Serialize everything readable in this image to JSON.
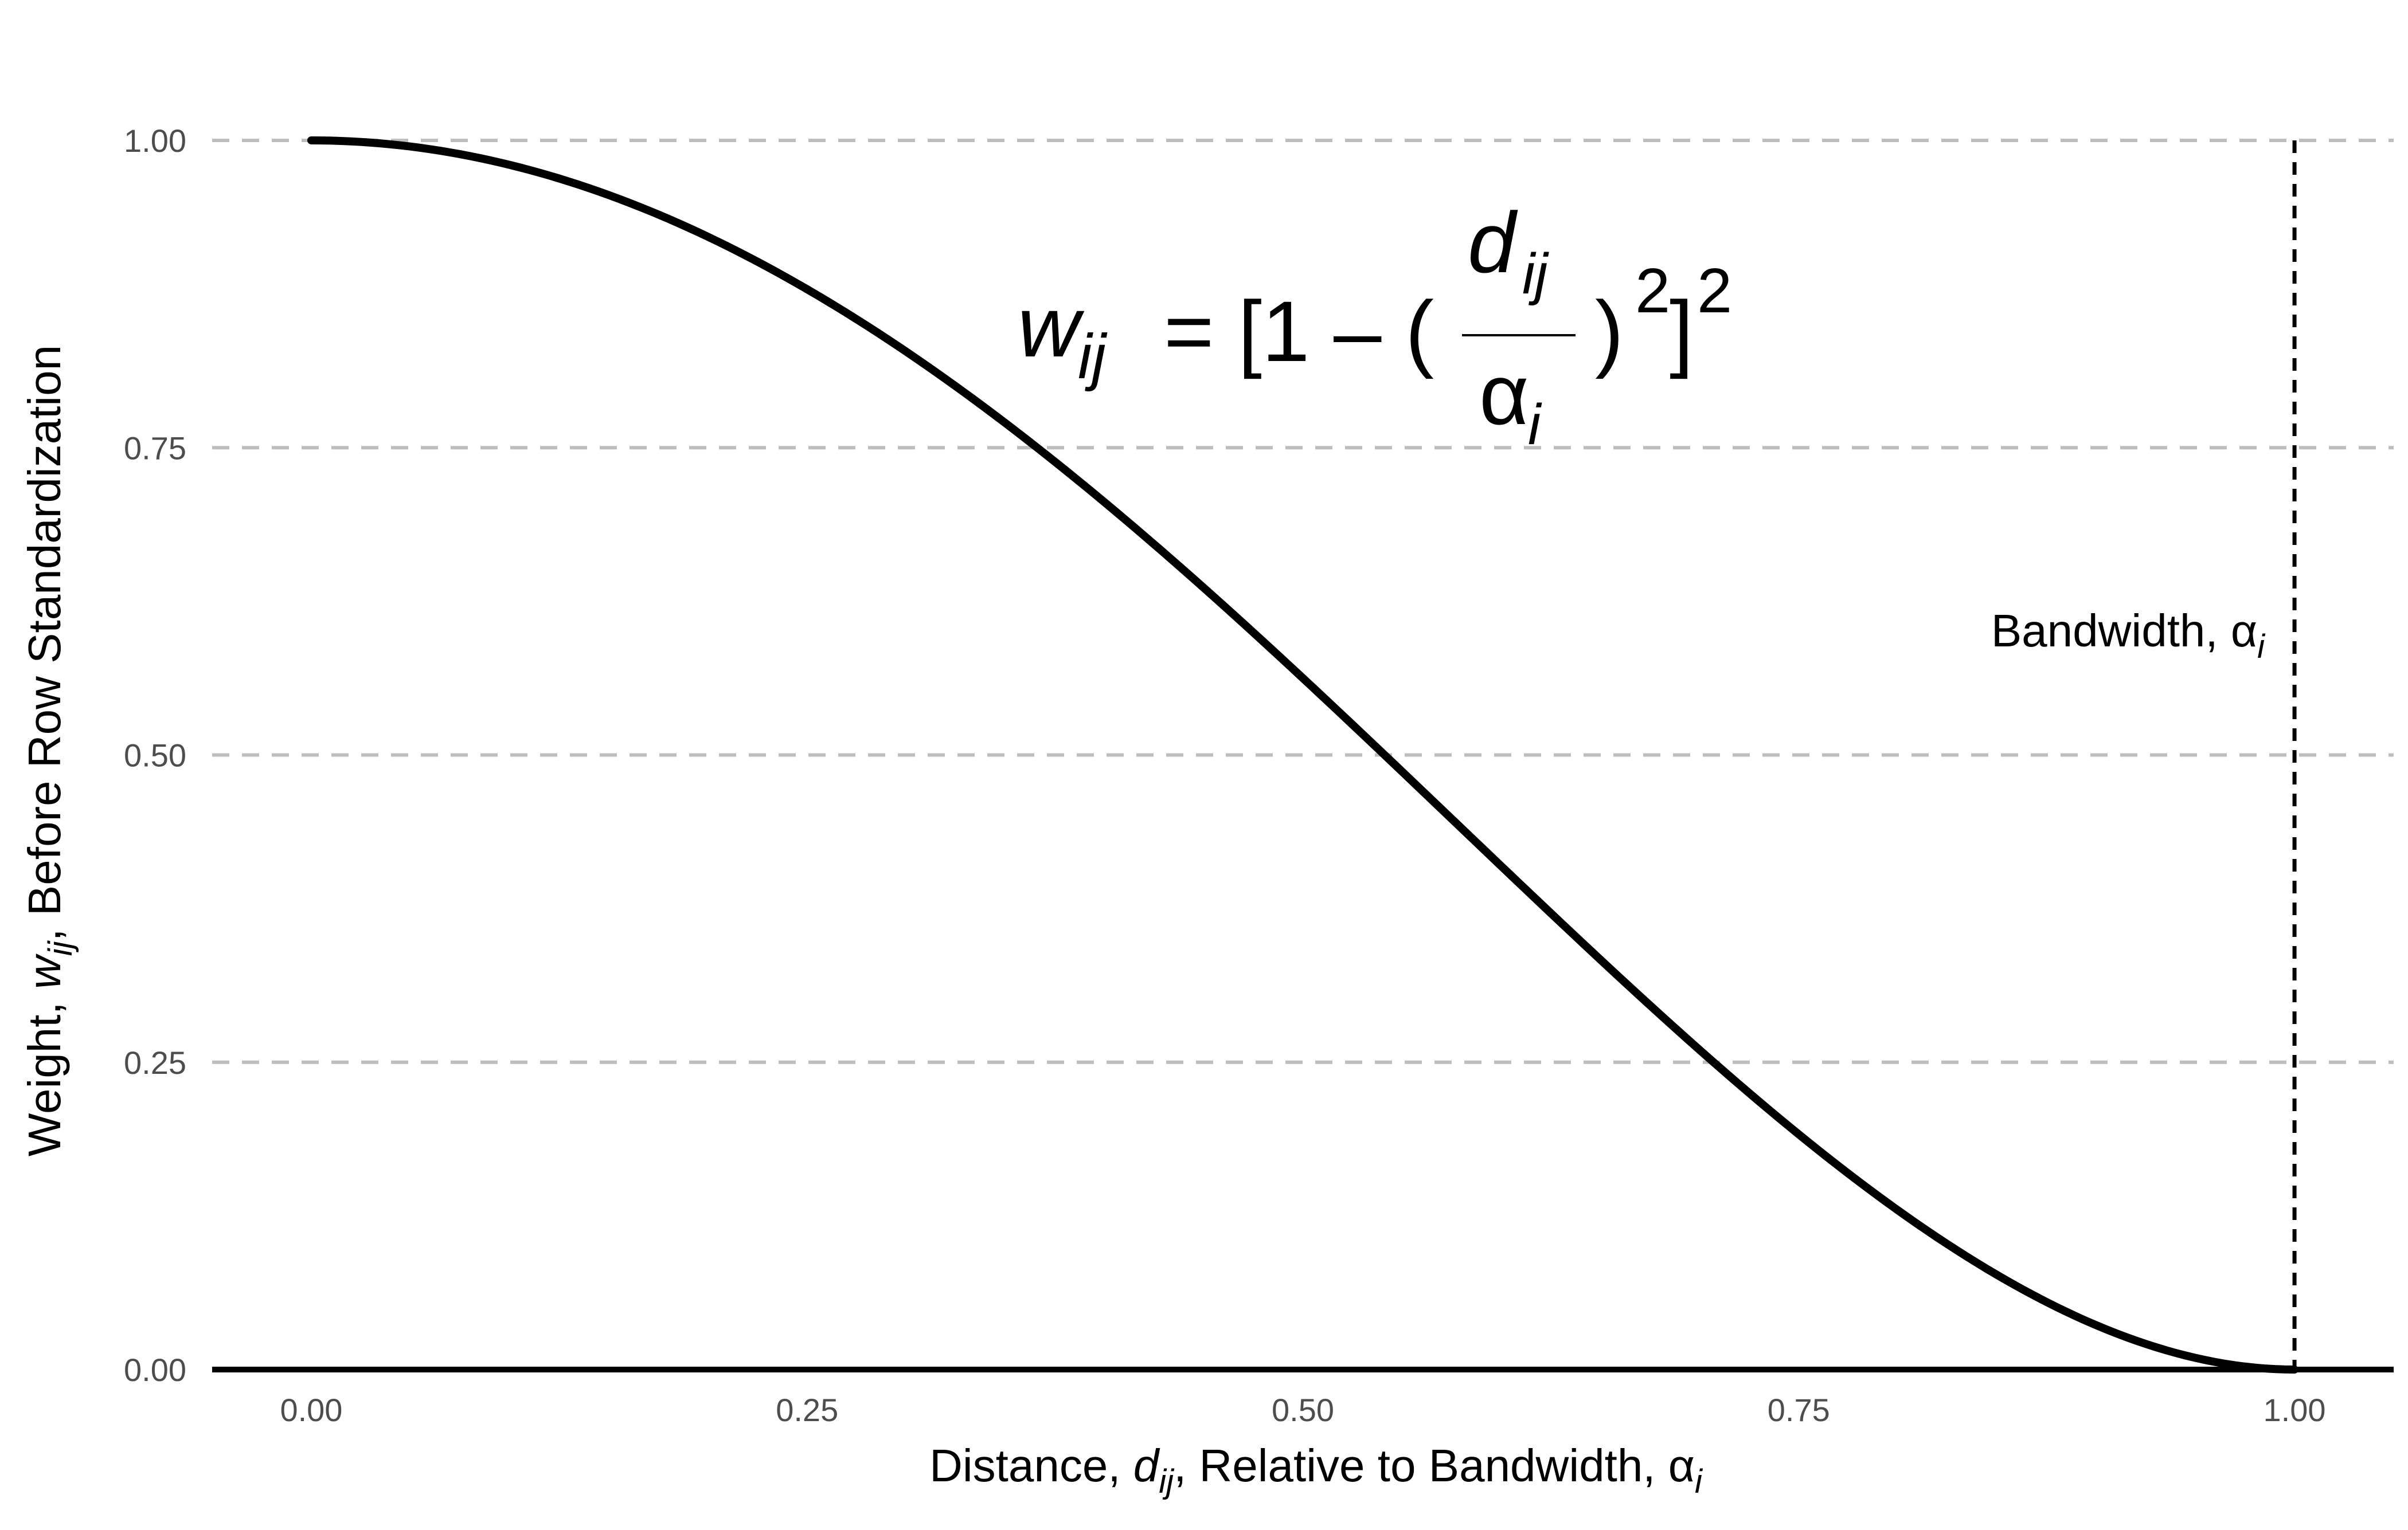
{
  "chart_data": {
    "type": "line",
    "title": "",
    "formula": {
      "lhs": "w",
      "lhs_sub": "ij",
      "rhs_prefix": "= [1 – (",
      "numerator": "d",
      "numerator_sub": "ij",
      "denominator": "α",
      "denominator_sub": "i",
      "inner_close": ")",
      "inner_exp": "2",
      "outer_close": "]",
      "outer_exp": "2"
    },
    "xlabel": {
      "prefix": "Distance, ",
      "var": "d",
      "var_sub": "ij",
      "suffix": ", Relative to Bandwidth, ",
      "symbol": "α",
      "symbol_sub": "i"
    },
    "ylabel": {
      "prefix": "Weight, ",
      "var": "w",
      "var_sub": "ij",
      "suffix": ", Before Row Standardization"
    },
    "xlim": [
      -0.05,
      1.05
    ],
    "ylim": [
      0,
      1
    ],
    "x_ticks": [
      0,
      0.25,
      0.5,
      0.75,
      1.0
    ],
    "x_tick_labels": [
      "0.00",
      "0.25",
      "0.50",
      "0.75",
      "1.00"
    ],
    "y_ticks": [
      0,
      0.25,
      0.5,
      0.75,
      1.0
    ],
    "y_tick_labels": [
      "0.00",
      "0.25",
      "0.50",
      "0.75",
      "1.00"
    ],
    "grid": "horizontal dashed",
    "series": [
      {
        "x": [
          0,
          0.05,
          0.1,
          0.15,
          0.2,
          0.25,
          0.3,
          0.35,
          0.4,
          0.45,
          0.5,
          0.55,
          0.6,
          0.65,
          0.7,
          0.75,
          0.8,
          0.85,
          0.9,
          0.95,
          1.0
        ],
        "y": [
          1.0,
          0.995,
          0.9801,
          0.9555,
          0.9216,
          0.8789,
          0.8281,
          0.77,
          0.7056,
          0.636,
          0.5625,
          0.4865,
          0.4096,
          0.3335,
          0.2601,
          0.1914,
          0.1296,
          0.077,
          0.0361,
          0.0095,
          0.0
        ],
        "color": "#000000"
      }
    ],
    "reference_line": {
      "x": 1.0,
      "label": "Bandwidth, ",
      "label_symbol": "α",
      "label_sub": "i"
    },
    "colors": {
      "line": "#000000",
      "grid": "#bebebe",
      "tick_text": "#4d4d4d"
    }
  }
}
